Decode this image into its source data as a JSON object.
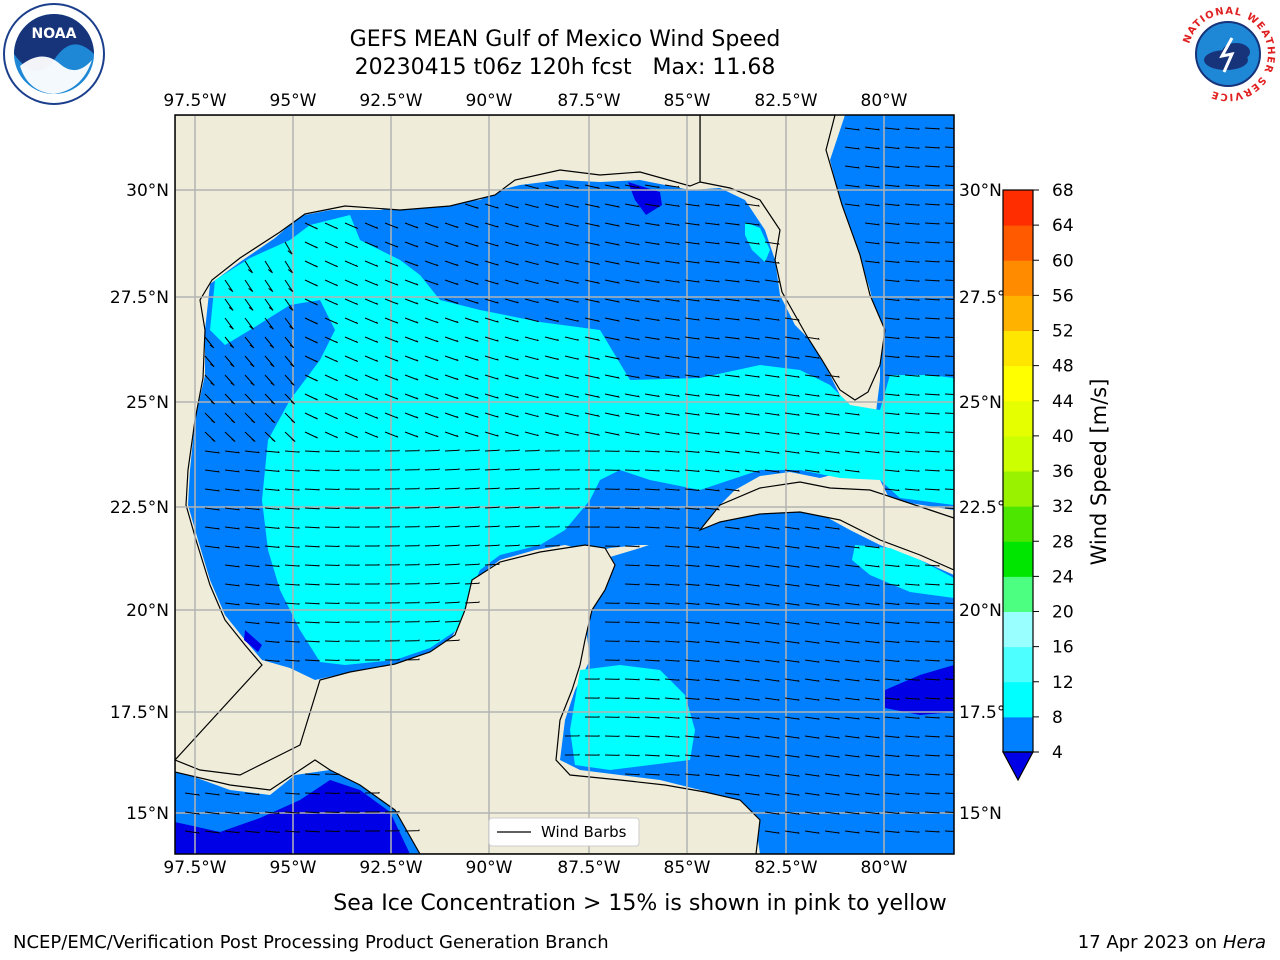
{
  "title": {
    "line1": "GEFS MEAN Gulf of Mexico Wind Speed",
    "line2": "20230415 t06z 120h fcst   Max: 11.68"
  },
  "logos": {
    "left": {
      "name": "noaa-logo",
      "text": "NOAA"
    },
    "right": {
      "name": "nws-logo",
      "text": "NATIONAL WEATHER SERVICE"
    }
  },
  "map": {
    "lon_labels": [
      "97.5°W",
      "95°W",
      "92.5°W",
      "90°W",
      "87.5°W",
      "85°W",
      "82.5°W",
      "80°W"
    ],
    "lat_labels": [
      "30°N",
      "27.5°N",
      "25°N",
      "22.5°N",
      "20°N",
      "17.5°N",
      "15°N"
    ],
    "legend_label": "Wind Barbs",
    "lon_range": [
      -98,
      -78
    ],
    "lat_range": [
      14,
      31.5
    ],
    "colors": {
      "land": "#efedda",
      "band_4_8": "#0080ff",
      "band_8_12": "#00ffff",
      "band_lt_4": "#0000e6",
      "grid": "#b3b3b3"
    }
  },
  "colorbar": {
    "label": "Wind Speed [m/s]",
    "ticks": [
      "4",
      "8",
      "12",
      "16",
      "20",
      "24",
      "28",
      "32",
      "36",
      "40",
      "44",
      "48",
      "52",
      "56",
      "60",
      "64",
      "68"
    ],
    "colors": [
      "#0080ff",
      "#00ffff",
      "#4dffff",
      "#99ffff",
      "#4dff80",
      "#00e600",
      "#4de600",
      "#99f200",
      "#ccff00",
      "#e6ff00",
      "#ffff00",
      "#ffe600",
      "#ffb300",
      "#ff8c00",
      "#ff5a00",
      "#ff2d00"
    ],
    "extend_color": "#0000e6"
  },
  "note": "Sea Ice Concentration > 15% is shown in pink to yellow",
  "footer": {
    "left": "NCEP/EMC/Verification Post Processing Product Generation Branch",
    "right_date": "17 Apr 2023 on ",
    "right_host": "Hera"
  }
}
